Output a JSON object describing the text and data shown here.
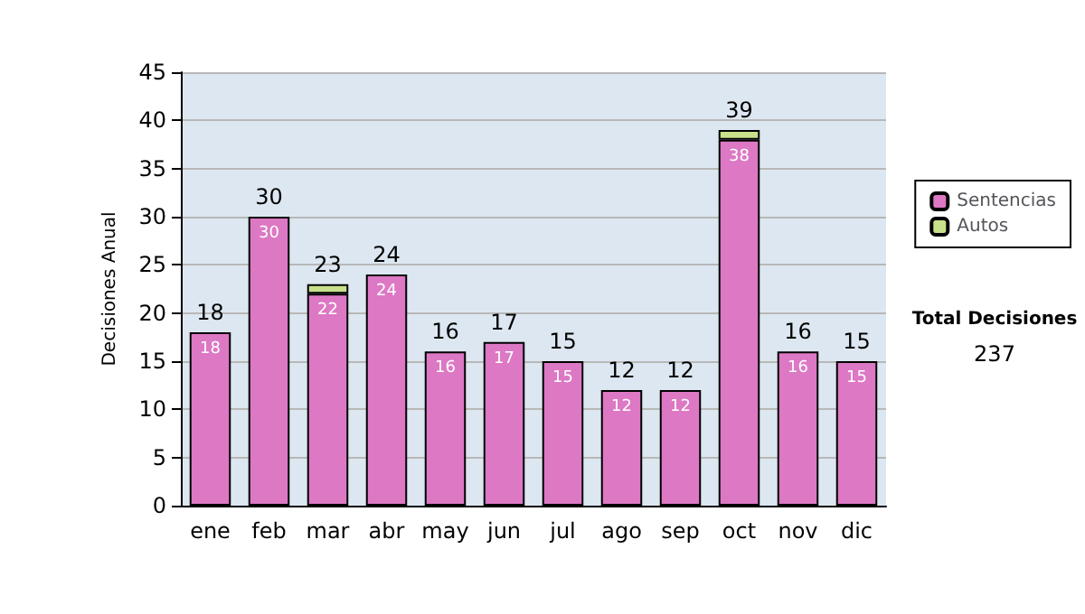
{
  "chart_data": {
    "type": "bar",
    "ylabel": "Decisiones Anual",
    "categories": [
      "ene",
      "feb",
      "mar",
      "abr",
      "may",
      "jun",
      "jul",
      "ago",
      "sep",
      "oct",
      "nov",
      "dic"
    ],
    "series": [
      {
        "name": "Sentencias",
        "color": "#dc78c4",
        "values": [
          18,
          30,
          22,
          24,
          16,
          17,
          15,
          12,
          12,
          38,
          16,
          15
        ],
        "value_labels": [
          "18",
          "30",
          "22",
          "24",
          "16",
          "17",
          "15",
          "12",
          "12",
          "38",
          "16",
          "15"
        ]
      },
      {
        "name": "Autos",
        "color": "#c8e08c",
        "values": [
          0,
          0,
          1,
          0,
          0,
          0,
          0,
          0,
          0,
          1,
          0,
          0
        ]
      }
    ],
    "stacked": true,
    "totals": [
      "18",
      "30",
      "23",
      "24",
      "16",
      "17",
      "15",
      "12",
      "12",
      "39",
      "16",
      "15"
    ],
    "ylim": [
      0,
      45
    ],
    "yticks": [
      0,
      5,
      10,
      15,
      20,
      25,
      30,
      35,
      40,
      45
    ],
    "grid": "y",
    "legend": "right",
    "annotations": [
      "Total Decisiones",
      "237"
    ]
  }
}
